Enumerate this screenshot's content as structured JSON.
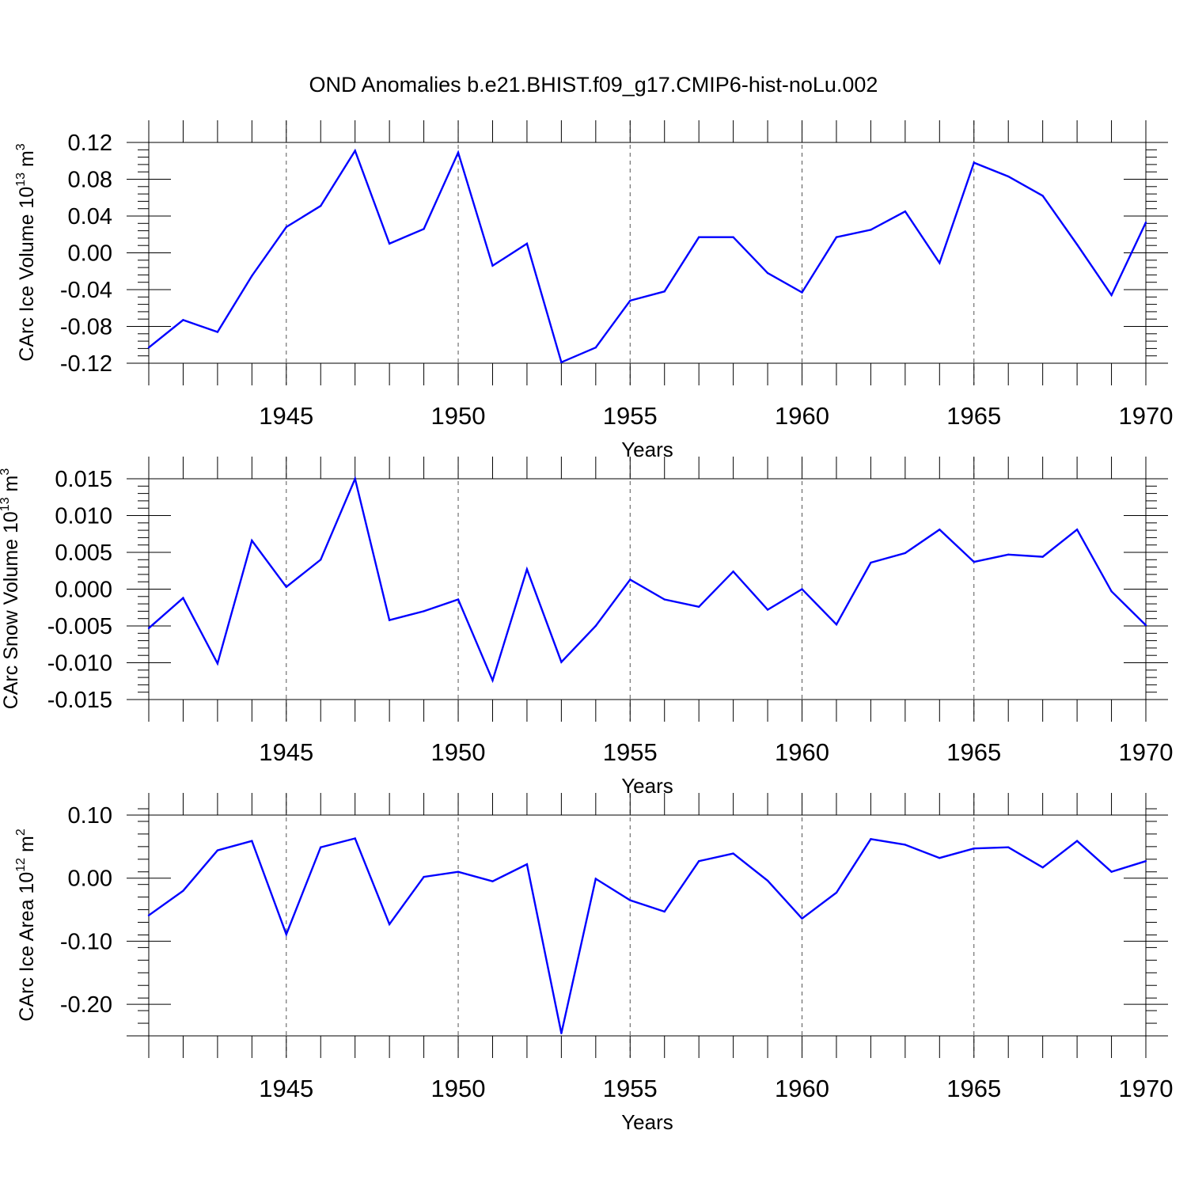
{
  "title": "OND Anomalies b.e21.BHIST.f09_g17.CMIP6-hist-noLu.002",
  "line_color": "#0000ff",
  "chart_data": [
    {
      "type": "line",
      "name": "ice-volume",
      "ylabel": {
        "prefix": "CArc Ice Volume 10",
        "exp": "13",
        "unit": " m",
        "unit_exp": "3"
      },
      "xlabel": "Years",
      "xlim": [
        1941,
        1970
      ],
      "ylim": [
        -0.12,
        0.12
      ],
      "yticks": [
        -0.12,
        -0.08,
        -0.04,
        0.0,
        0.04,
        0.08,
        0.12
      ],
      "ytick_labels": [
        "-0.12",
        "-0.08",
        "-0.04",
        "0.00",
        "0.04",
        "0.08",
        "0.12"
      ],
      "yminor_step": 0.008,
      "xticks": [
        1945,
        1950,
        1955,
        1960,
        1965,
        1970
      ],
      "xtick_labels": [
        "1945",
        "1950",
        "1955",
        "1960",
        "1965",
        "1970"
      ],
      "x": [
        1941,
        1942,
        1943,
        1944,
        1945,
        1946,
        1947,
        1948,
        1949,
        1950,
        1951,
        1952,
        1953,
        1954,
        1955,
        1956,
        1957,
        1958,
        1959,
        1960,
        1961,
        1962,
        1963,
        1964,
        1965,
        1966,
        1967,
        1968,
        1969,
        1970
      ],
      "values": [
        -0.103,
        -0.073,
        -0.086,
        -0.025,
        0.028,
        0.051,
        0.111,
        0.01,
        0.026,
        0.109,
        -0.014,
        0.01,
        -0.119,
        -0.103,
        -0.052,
        -0.042,
        0.017,
        0.017,
        -0.022,
        -0.043,
        0.017,
        0.025,
        0.045,
        -0.011,
        0.098,
        0.083,
        0.062,
        0.009,
        -0.046,
        0.033
      ]
    },
    {
      "type": "line",
      "name": "snow-volume",
      "ylabel": {
        "prefix": "CArc Snow Volume 10",
        "exp": "13",
        "unit": " m",
        "unit_exp": "3"
      },
      "xlabel": "Years",
      "xlim": [
        1941,
        1970
      ],
      "ylim": [
        -0.015,
        0.015
      ],
      "yticks": [
        -0.015,
        -0.01,
        -0.005,
        0.0,
        0.005,
        0.01,
        0.015
      ],
      "ytick_labels": [
        "-0.015",
        "-0.010",
        "-0.005",
        "0.000",
        "0.005",
        "0.010",
        "0.015"
      ],
      "yminor_step": 0.001,
      "xticks": [
        1945,
        1950,
        1955,
        1960,
        1965,
        1970
      ],
      "xtick_labels": [
        "1945",
        "1950",
        "1955",
        "1960",
        "1965",
        "1970"
      ],
      "x": [
        1941,
        1942,
        1943,
        1944,
        1945,
        1946,
        1947,
        1948,
        1949,
        1950,
        1951,
        1952,
        1953,
        1954,
        1955,
        1956,
        1957,
        1958,
        1959,
        1960,
        1961,
        1962,
        1963,
        1964,
        1965,
        1966,
        1967,
        1968,
        1969,
        1970
      ],
      "values": [
        -0.0053,
        -0.0012,
        -0.0101,
        0.0066,
        0.0003,
        0.004,
        0.015,
        -0.0042,
        -0.003,
        -0.0014,
        -0.0124,
        0.0027,
        -0.0099,
        -0.005,
        0.0013,
        -0.0014,
        -0.0024,
        0.0024,
        -0.0028,
        0.0,
        -0.0048,
        0.0036,
        0.0049,
        0.0081,
        0.0037,
        0.0047,
        0.0044,
        0.0081,
        -0.0003,
        -0.0049
      ]
    },
    {
      "type": "line",
      "name": "ice-area",
      "ylabel": {
        "prefix": "CArc Ice Area 10",
        "exp": "12",
        "unit": " m",
        "unit_exp": "2"
      },
      "xlabel": "Years",
      "xlim": [
        1941,
        1970
      ],
      "ylim": [
        -0.25,
        0.1
      ],
      "yticks": [
        -0.2,
        -0.1,
        0.0,
        0.1
      ],
      "ytick_labels": [
        "-0.20",
        "-0.10",
        "0.00",
        "0.10"
      ],
      "yminor_step": 0.02,
      "xticks": [
        1945,
        1950,
        1955,
        1960,
        1965,
        1970
      ],
      "xtick_labels": [
        "1945",
        "1950",
        "1955",
        "1960",
        "1965",
        "1970"
      ],
      "x": [
        1941,
        1942,
        1943,
        1944,
        1945,
        1946,
        1947,
        1948,
        1949,
        1950,
        1951,
        1952,
        1953,
        1954,
        1955,
        1956,
        1957,
        1958,
        1959,
        1960,
        1961,
        1962,
        1963,
        1964,
        1965,
        1966,
        1967,
        1968,
        1969,
        1970
      ],
      "values": [
        -0.059,
        -0.02,
        0.044,
        0.059,
        -0.089,
        0.049,
        0.063,
        -0.073,
        0.002,
        0.01,
        -0.005,
        0.022,
        -0.246,
        -0.001,
        -0.035,
        -0.053,
        0.027,
        0.039,
        -0.004,
        -0.064,
        -0.023,
        0.062,
        0.053,
        0.032,
        0.047,
        0.049,
        0.017,
        0.059,
        0.01,
        0.027
      ]
    }
  ]
}
